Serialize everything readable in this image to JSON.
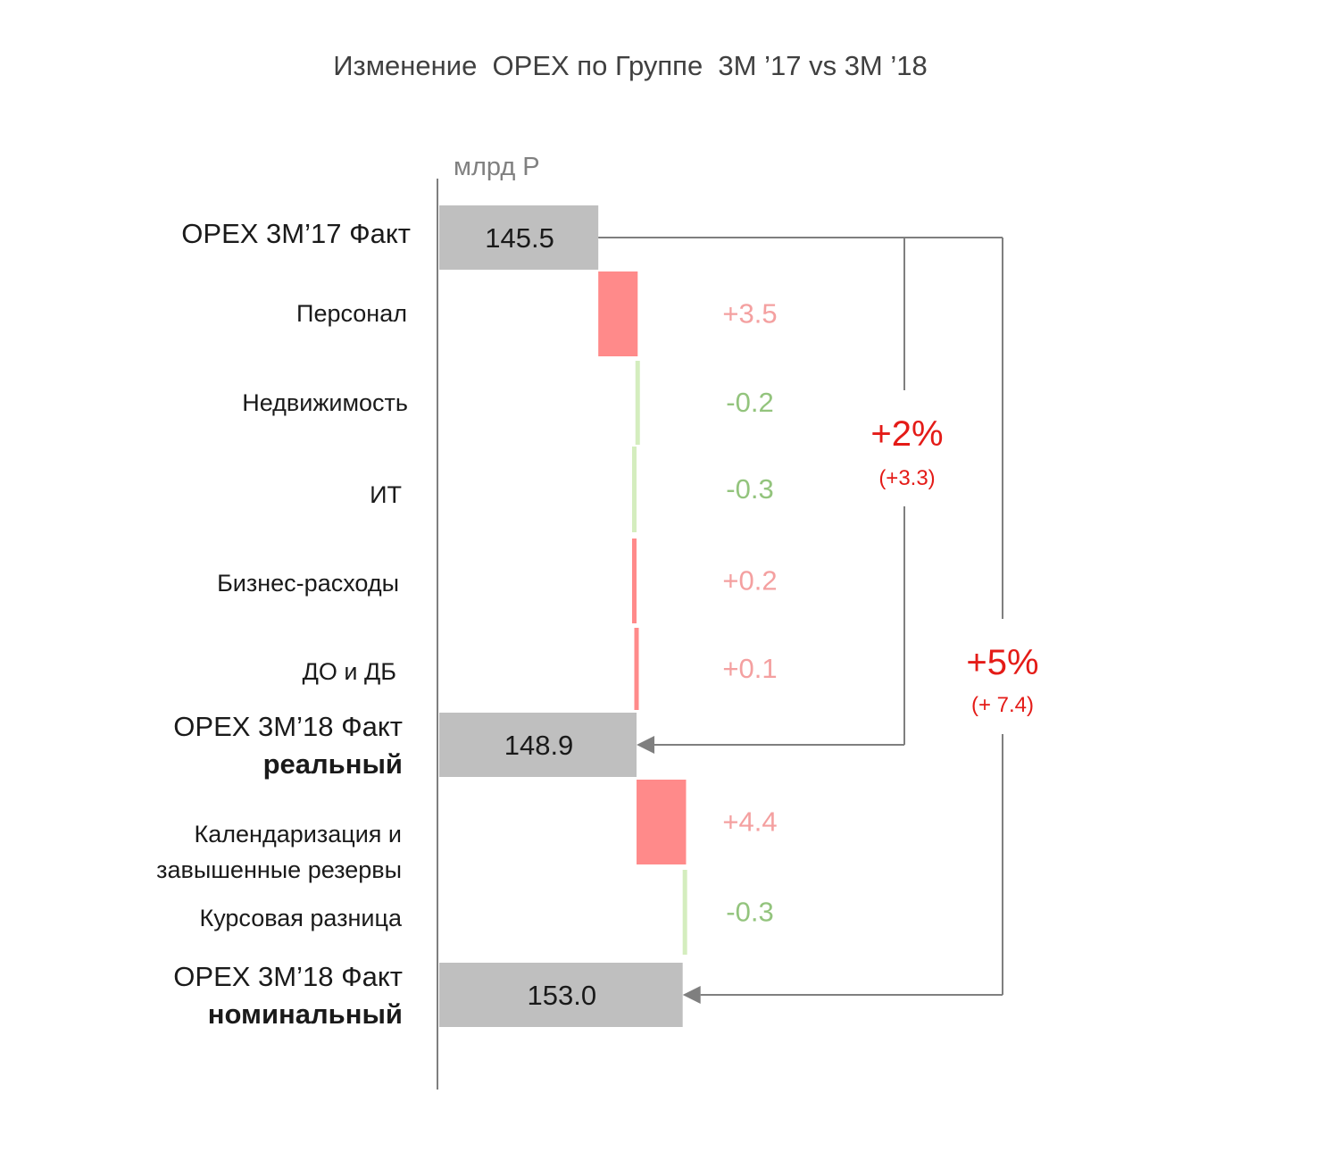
{
  "chart_data": {
    "type": "bar",
    "subtype": "horizontal-waterfall",
    "title": "Изменение  OPEX по Группе  3M ’17 vs 3M ’18",
    "unit": "млрд Р",
    "steps": [
      {
        "kind": "total",
        "label": [
          "OPEX 3M’17 Факт"
        ],
        "value": 145.5,
        "value_label": "145.5"
      },
      {
        "kind": "delta",
        "label": [
          "Персонал"
        ],
        "value": 3.5,
        "value_label": "+3.5"
      },
      {
        "kind": "delta",
        "label": [
          "Недвижимость"
        ],
        "value": -0.2,
        "value_label": "-0.2"
      },
      {
        "kind": "delta",
        "label": [
          "ИТ"
        ],
        "value": -0.3,
        "value_label": "-0.3"
      },
      {
        "kind": "delta",
        "label": [
          "Бизнес-расходы"
        ],
        "value": 0.2,
        "value_label": "+0.2"
      },
      {
        "kind": "delta",
        "label": [
          "ДО и ДБ"
        ],
        "value": 0.1,
        "value_label": "+0.1"
      },
      {
        "kind": "total",
        "label": [
          "OPEX 3M’18 Факт",
          "реальный"
        ],
        "value": 148.9,
        "value_label": "148.9"
      },
      {
        "kind": "delta",
        "label": [
          "Календаризация и",
          "завышенные  резервы"
        ],
        "value": 4.4,
        "value_label": "+4.4"
      },
      {
        "kind": "delta",
        "label": [
          "Курсовая разница"
        ],
        "value": -0.3,
        "value_label": "-0.3"
      },
      {
        "kind": "total",
        "label": [
          "OPEX 3M’18 Факт",
          "номинальный"
        ],
        "value": 153.0,
        "value_label": "153.0"
      }
    ],
    "annotations": [
      {
        "from": "OPEX 3M’17 Факт",
        "to": "OPEX 3M’18 Факт реальный",
        "percent": "+2%",
        "abs": "(+3.3)"
      },
      {
        "from": "OPEX 3M’17 Факт",
        "to": "OPEX 3M’18 Факт номинальный",
        "percent": "+5%",
        "abs": "(+ 7.4)"
      }
    ],
    "colors": {
      "total": "#bfbfbf",
      "increase": "#ff8a8a",
      "decrease": "#d4edbe",
      "increase_text": "#f4a0a0",
      "decrease_text": "#93c47d",
      "annotation": "#e41b17",
      "connector": "#7f7f7f"
    }
  }
}
